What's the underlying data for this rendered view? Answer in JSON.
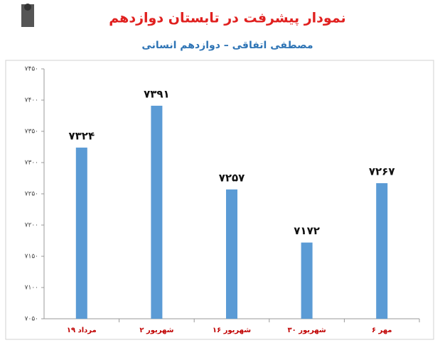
{
  "chart_data": {
    "type": "bar",
    "title": "نمودار پیشرفت در تابستان دوازدهم",
    "subtitle": "مصطفی اتفاقی – دوازدهم انسانی",
    "categories": [
      "۱۹ مرداد",
      "۲ شهریور",
      "۱۶ شهریور",
      "۳۰ شهریور",
      "۶ مهر"
    ],
    "values": [
      7324,
      7391,
      7257,
      7172,
      7267
    ],
    "value_labels": [
      "۷۳۲۴",
      "۷۳۹۱",
      "۷۲۵۷",
      "۷۱۷۲",
      "۷۲۶۷"
    ],
    "color": "#5b9bd5",
    "ylim": [
      7050,
      7450
    ],
    "yticks": [
      {
        "value": 7050,
        "label": "۷۰۵۰"
      },
      {
        "value": 7100,
        "label": "۷۱۰۰"
      },
      {
        "value": 7150,
        "label": "۷۱۵۰"
      },
      {
        "value": 7200,
        "label": "۷۲۰۰"
      },
      {
        "value": 7250,
        "label": "۷۲۵۰"
      },
      {
        "value": 7300,
        "label": "۷۳۰۰"
      },
      {
        "value": 7350,
        "label": "۷۳۵۰"
      },
      {
        "value": 7400,
        "label": "۷۴۰۰"
      },
      {
        "value": 7450,
        "label": "۷۴۵۰"
      }
    ],
    "grid": false
  }
}
